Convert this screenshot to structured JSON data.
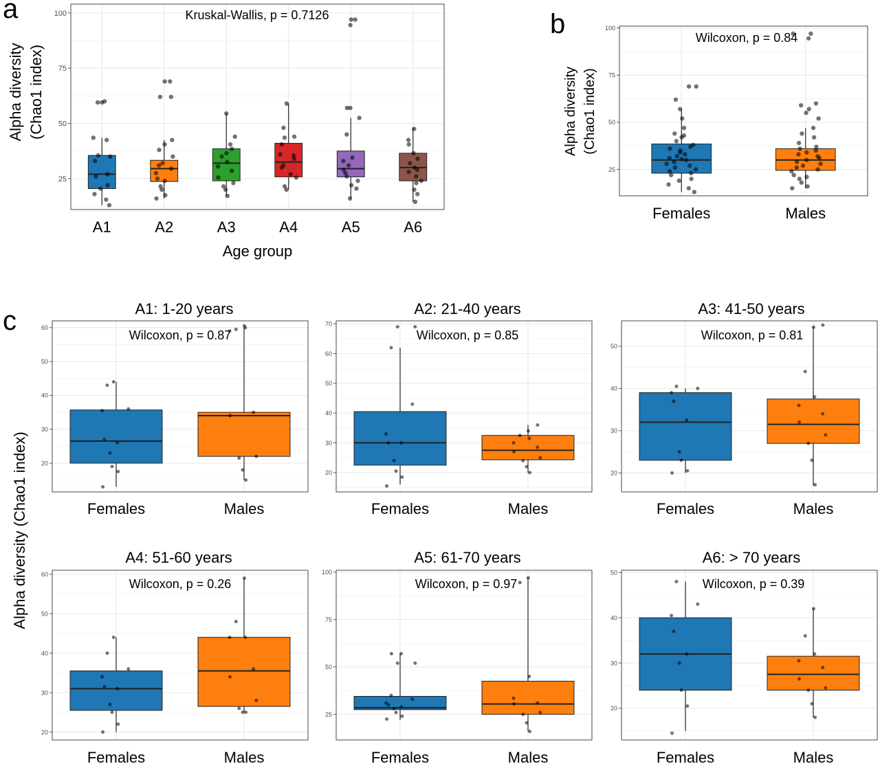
{
  "panel_letters": [
    "a",
    "b",
    "c"
  ],
  "shared_ylabel_c": "Alpha diversity (Chao1 index)",
  "colors": {
    "A1": "#1f77b4",
    "A2": "#ff7f0e",
    "A3": "#2ca02c",
    "A4": "#d62728",
    "A5": "#9467bd",
    "A6": "#8c564b",
    "Females": "#1f77b4",
    "Males": "#ff7f0e"
  },
  "chart_data": [
    {
      "panel": "a",
      "type": "box",
      "annotation": "Kruskal-Wallis, p = 0.7126",
      "xlabel": "Age group",
      "ylabel": [
        "Alpha diversity",
        "(Chao1 index)"
      ],
      "yticks": [
        25,
        50,
        75,
        100
      ],
      "ylim": [
        11,
        104
      ],
      "grid": true,
      "categories": [
        "A1",
        "A2",
        "A3",
        "A4",
        "A5",
        "A6"
      ],
      "boxes": [
        {
          "q1": 20.5,
          "median": 27,
          "q3": 35.5,
          "wlo": 13,
          "whi": 43.5
        },
        {
          "q1": 23.7,
          "median": 29.5,
          "q3": 33.3,
          "wlo": 16,
          "whi": 42.5
        },
        {
          "q1": 24,
          "median": 32,
          "q3": 38.5,
          "wlo": 17.2,
          "whi": 54.5
        },
        {
          "q1": 25.8,
          "median": 32.5,
          "q3": 41,
          "wlo": 20,
          "whi": 59
        },
        {
          "q1": 25.8,
          "median": 29.5,
          "q3": 37.5,
          "wlo": 16,
          "whi": 52.5
        },
        {
          "q1": 24,
          "median": 30,
          "q3": 36.5,
          "wlo": 14.5,
          "whi": 48
        }
      ],
      "points": [
        [
          13,
          15.5,
          18,
          20.5,
          22,
          26,
          27,
          33,
          35,
          35.5,
          42.5,
          43.5,
          59.5,
          60,
          59.5
        ],
        [
          16,
          17.5,
          20,
          21.5,
          24,
          25,
          27.5,
          29.5,
          31,
          32,
          35,
          38,
          40.5,
          42.5,
          62,
          62,
          69,
          69
        ],
        [
          17.2,
          20,
          21.5,
          23,
          25.5,
          28.5,
          30.5,
          32.5,
          35,
          36.5,
          38.5,
          40.5,
          44,
          54.5
        ],
        [
          20,
          21.5,
          25.5,
          27,
          30,
          31,
          34,
          35.5,
          36,
          40.5,
          43.5,
          44,
          48,
          59
        ],
        [
          16,
          20.5,
          22,
          24,
          26,
          27.5,
          29,
          31,
          33,
          34.5,
          45,
          52.5,
          57,
          57,
          94.5,
          97,
          97
        ],
        [
          14.5,
          18,
          20,
          23,
          24,
          26,
          28,
          29,
          30,
          32,
          34,
          36.5,
          40.5,
          42.5,
          47.5
        ]
      ]
    },
    {
      "panel": "b",
      "type": "box",
      "annotation": "Wilcoxon, p = 0.84",
      "ylabel": [
        "Alpha diversity",
        "(Chao1 index)"
      ],
      "yticks": [
        25,
        50,
        75,
        100
      ],
      "ylim": [
        11,
        101
      ],
      "grid": true,
      "categories": [
        "Females",
        "Males"
      ],
      "boxes": [
        {
          "q1": 23,
          "median": 30,
          "q3": 38.5,
          "wlo": 13,
          "whi": 57
        },
        {
          "q1": 24.5,
          "median": 30,
          "q3": 36,
          "wlo": 15,
          "whi": 47
        }
      ],
      "points": [
        [
          13,
          15,
          17,
          19,
          20,
          22,
          23,
          24,
          25,
          26,
          27,
          28,
          29,
          30,
          30.5,
          31,
          32,
          33,
          34,
          35,
          36,
          37,
          38,
          40,
          42,
          43,
          44,
          47,
          52,
          57,
          62,
          69,
          69
        ],
        [
          15,
          16,
          18,
          20,
          21,
          22,
          24,
          25,
          26,
          27,
          28,
          29,
          30,
          31,
          32,
          33,
          34,
          35,
          36,
          37,
          39,
          42,
          44,
          47,
          52,
          55,
          57,
          59,
          60,
          94.5,
          97,
          97
        ]
      ]
    },
    {
      "panel": "c1",
      "type": "box",
      "title": "A1:  1-20 years",
      "annotation": "Wilcoxon, p = 0.87",
      "yticks": [
        20,
        30,
        40,
        50,
        60
      ],
      "ylim": [
        11.5,
        62
      ],
      "grid": true,
      "categories": [
        "Females",
        "Males"
      ],
      "boxes": [
        {
          "q1": 20,
          "median": 26.5,
          "q3": 35.7,
          "wlo": 13,
          "whi": 44
        },
        {
          "q1": 22,
          "median": 34,
          "q3": 35,
          "wlo": 15,
          "whi": 60
        }
      ],
      "points": [
        [
          13,
          17.5,
          19,
          23,
          26,
          27,
          35.5,
          36,
          43,
          44
        ],
        [
          15,
          18,
          21.5,
          22,
          34,
          35,
          59,
          60,
          59.5,
          60.5
        ]
      ]
    },
    {
      "panel": "c2",
      "type": "box",
      "title": "A2:  21-40 years",
      "annotation": "Wilcoxon, p = 0.85",
      "yticks": [
        20,
        30,
        40,
        50,
        60,
        70
      ],
      "ylim": [
        13.5,
        71
      ],
      "grid": true,
      "categories": [
        "Females",
        "Males"
      ],
      "boxes": [
        {
          "q1": 22.5,
          "median": 30,
          "q3": 40.5,
          "wlo": 16,
          "whi": 62
        },
        {
          "q1": 24.3,
          "median": 27.5,
          "q3": 32.5,
          "wlo": 20,
          "whi": 36
        }
      ],
      "points": [
        [
          15.5,
          18.5,
          20.5,
          24,
          30,
          30,
          33,
          43,
          62,
          69,
          69
        ],
        [
          20,
          22,
          24,
          25,
          27,
          28.5,
          30,
          31.5,
          32.5,
          34,
          36
        ]
      ]
    },
    {
      "panel": "c3",
      "type": "box",
      "title": "A3:  41-50 years",
      "annotation": "Wilcoxon, p = 0.81",
      "yticks": [
        20,
        30,
        40,
        50
      ],
      "ylim": [
        15.5,
        56
      ],
      "grid": true,
      "categories": [
        "Females",
        "Males"
      ],
      "boxes": [
        {
          "q1": 23,
          "median": 32,
          "q3": 39,
          "wlo": 20,
          "whi": 40
        },
        {
          "q1": 27,
          "median": 31.5,
          "q3": 37.5,
          "wlo": 17,
          "whi": 54.5
        }
      ],
      "points": [
        [
          20,
          20.5,
          23,
          25,
          32.5,
          37,
          39,
          40,
          40.5
        ],
        [
          17.2,
          23,
          27,
          29,
          32,
          34,
          36,
          38,
          44,
          54.5,
          55
        ]
      ]
    },
    {
      "panel": "c4",
      "type": "box",
      "title": "A4:  51-60 years",
      "annotation": "Wilcoxon, p = 0.26",
      "yticks": [
        20,
        30,
        40,
        50,
        60
      ],
      "ylim": [
        18,
        61
      ],
      "grid": true,
      "categories": [
        "Females",
        "Males"
      ],
      "boxes": [
        {
          "q1": 25.5,
          "median": 31,
          "q3": 35.5,
          "wlo": 20,
          "whi": 44
        },
        {
          "q1": 26.5,
          "median": 35.5,
          "q3": 44,
          "wlo": 25,
          "whi": 59
        }
      ],
      "points": [
        [
          20,
          22,
          25,
          27,
          31,
          31.5,
          34,
          36,
          40,
          44
        ],
        [
          25,
          25,
          26,
          28,
          34,
          36,
          44,
          44,
          48,
          59
        ]
      ]
    },
    {
      "panel": "c5",
      "type": "box",
      "title": "A5:  61-70 years",
      "annotation": "Wilcoxon, p = 0.97",
      "yticks": [
        25,
        50,
        75,
        100
      ],
      "ylim": [
        11.5,
        101
      ],
      "grid": true,
      "categories": [
        "Females",
        "Males"
      ],
      "boxes": [
        {
          "q1": 27.5,
          "median": 28.5,
          "q3": 34.5,
          "wlo": 22,
          "whi": 57
        },
        {
          "q1": 25,
          "median": 30.5,
          "q3": 42.5,
          "wlo": 16,
          "whi": 97
        }
      ],
      "points": [
        [
          22.5,
          24,
          26,
          28,
          29,
          30,
          31,
          33,
          35,
          52,
          52,
          57,
          57
        ],
        [
          16,
          20.5,
          25,
          26,
          30.5,
          31,
          33.5,
          45,
          94.5,
          97
        ]
      ]
    },
    {
      "panel": "c6",
      "type": "box",
      "title": "A6:  > 70 years",
      "annotation": "Wilcoxon, p = 0.39",
      "yticks": [
        20,
        30,
        40,
        50
      ],
      "ylim": [
        13,
        50.5
      ],
      "grid": true,
      "categories": [
        "Females",
        "Males"
      ],
      "boxes": [
        {
          "q1": 24,
          "median": 32,
          "q3": 40,
          "wlo": 15,
          "whi": 48
        },
        {
          "q1": 24,
          "median": 27.5,
          "q3": 31.5,
          "wlo": 18,
          "whi": 42
        }
      ],
      "points": [
        [
          14.5,
          20.5,
          24,
          30,
          32,
          37,
          40.5,
          43,
          48
        ],
        [
          18,
          21,
          24,
          24.5,
          26.5,
          29,
          30.5,
          32,
          36,
          42
        ]
      ]
    }
  ]
}
